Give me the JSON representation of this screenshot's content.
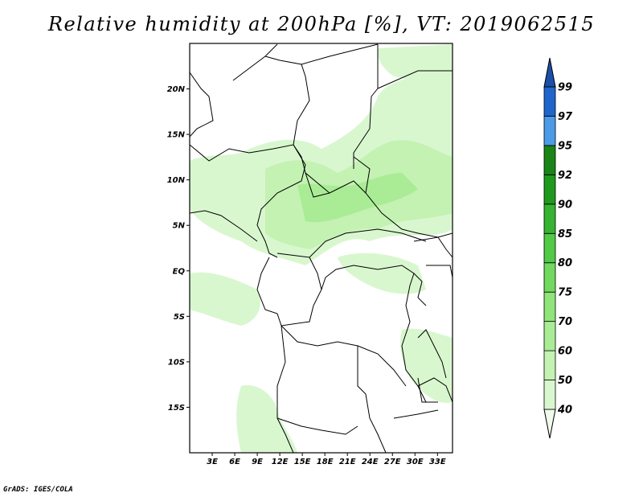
{
  "title": "Relative humidity at 200hPa [%], VT: 2019062515",
  "credit": "GrADS: IGES/COLA",
  "map": {
    "lon_range": [
      0,
      35
    ],
    "lat_range": [
      -20,
      25
    ],
    "lat_ticks": [
      {
        "label": "20N",
        "value": 20
      },
      {
        "label": "15N",
        "value": 15
      },
      {
        "label": "10N",
        "value": 10
      },
      {
        "label": "5N",
        "value": 5
      },
      {
        "label": "EQ",
        "value": 0
      },
      {
        "label": "5S",
        "value": -5
      },
      {
        "label": "10S",
        "value": -10
      },
      {
        "label": "15S",
        "value": -15
      }
    ],
    "lon_ticks": [
      {
        "label": "3E",
        "value": 3
      },
      {
        "label": "6E",
        "value": 6
      },
      {
        "label": "9E",
        "value": 9
      },
      {
        "label": "12E",
        "value": 12
      },
      {
        "label": "15E",
        "value": 15
      },
      {
        "label": "18E",
        "value": 18
      },
      {
        "label": "21E",
        "value": 21
      },
      {
        "label": "24E",
        "value": 24
      },
      {
        "label": "27E",
        "value": 27
      },
      {
        "label": "30E",
        "value": 30
      },
      {
        "label": "33E",
        "value": 33
      }
    ]
  },
  "colorbar": {
    "levels": [
      "40",
      "50",
      "60",
      "70",
      "75",
      "80",
      "85",
      "90",
      "92",
      "95",
      "97",
      "99"
    ],
    "colors": [
      "#f0fbeb",
      "#d9f7cf",
      "#c3f2b2",
      "#aaec96",
      "#8fe47a",
      "#72d95f",
      "#52c947",
      "#36b431",
      "#1f9a1e",
      "#1a8417",
      "#4d9be8",
      "#1f66cc",
      "#1a4faa"
    ]
  }
}
